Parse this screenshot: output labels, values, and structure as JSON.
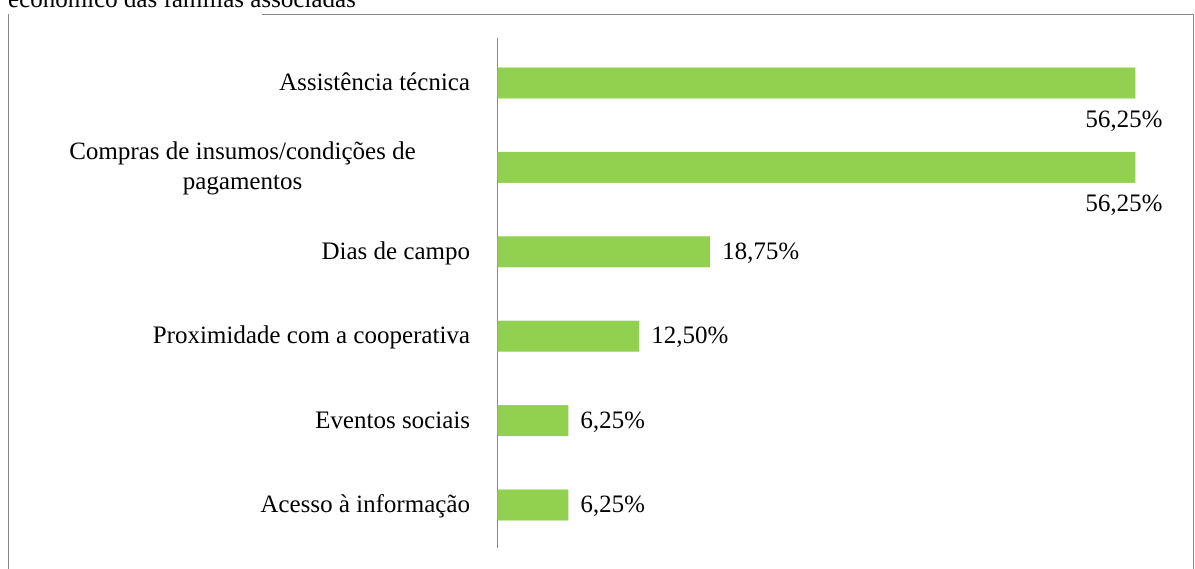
{
  "chart_data": {
    "type": "bar",
    "orientation": "horizontal",
    "title": "econômico das famílias associadas",
    "categories": [
      "Assistência técnica",
      "Compras de insumos/condições de pagamentos",
      "Dias de campo",
      "Proximidade com a cooperativa",
      "Eventos sociais",
      "Acesso à informação"
    ],
    "values": [
      56.25,
      56.25,
      18.75,
      12.5,
      6.25,
      6.25
    ],
    "value_labels": [
      "56,25%",
      "56,25%",
      "18,75%",
      "12,50%",
      "6,25%",
      "6,25%"
    ],
    "color": "#92d050"
  }
}
